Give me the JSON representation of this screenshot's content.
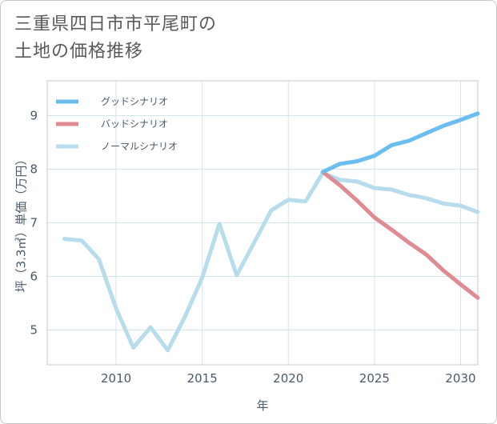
{
  "title": {
    "line1": "三重県四日市市平尾町の",
    "line2": "土地の価格推移"
  },
  "chart_data": {
    "type": "line",
    "xlabel": "年",
    "ylabel": "坪（3.3㎡）単価（万円）",
    "xlim": [
      2006,
      2031
    ],
    "ylim": [
      4.35,
      9.65
    ],
    "xticks": [
      2010,
      2015,
      2020,
      2025,
      2030
    ],
    "yticks": [
      5,
      6,
      7,
      8,
      9
    ],
    "grid": true,
    "legend_position": "top-left",
    "series": [
      {
        "name": "グッドシナリオ",
        "color": "#6bbdf0",
        "x": [
          2022,
          2023,
          2024,
          2025,
          2026,
          2027,
          2028,
          2029,
          2030,
          2031
        ],
        "values": [
          7.95,
          8.1,
          8.15,
          8.25,
          8.45,
          8.53,
          8.67,
          8.81,
          8.92,
          9.04
        ]
      },
      {
        "name": "バッドシナリオ",
        "color": "#e08a92",
        "x": [
          2022,
          2023,
          2024,
          2025,
          2026,
          2027,
          2028,
          2029,
          2030,
          2031
        ],
        "values": [
          7.95,
          7.7,
          7.41,
          7.1,
          6.87,
          6.63,
          6.41,
          6.11,
          5.85,
          5.6
        ]
      },
      {
        "name": "ノーマルシナリオ",
        "color": "#b7dcec",
        "x": [
          2007,
          2008,
          2009,
          2010,
          2011,
          2012,
          2013,
          2014,
          2015,
          2016,
          2017,
          2018,
          2019,
          2020,
          2021,
          2022,
          2023,
          2024,
          2025,
          2026,
          2027,
          2028,
          2029,
          2030,
          2031
        ],
        "values": [
          6.7,
          6.67,
          6.32,
          5.4,
          4.67,
          5.05,
          4.62,
          5.25,
          5.98,
          6.98,
          6.02,
          6.62,
          7.23,
          7.43,
          7.4,
          7.93,
          7.8,
          7.77,
          7.65,
          7.62,
          7.52,
          7.46,
          7.36,
          7.32,
          7.2
        ]
      }
    ]
  }
}
